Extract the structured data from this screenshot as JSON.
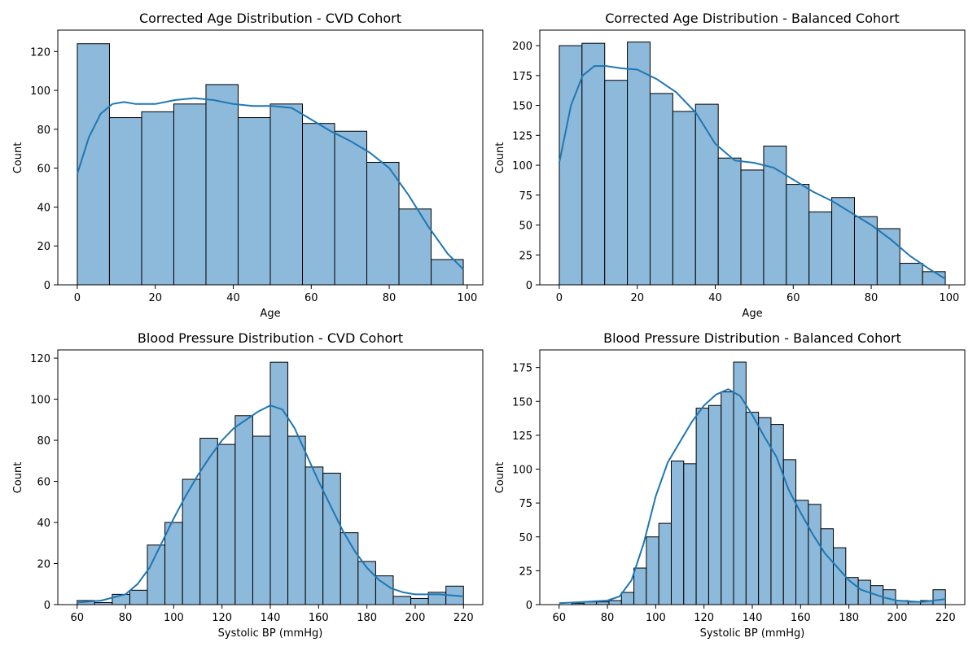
{
  "chart_data": [
    {
      "type": "bar",
      "title": "Corrected Age Distribution - CVD Cohort",
      "xlabel": "Age",
      "ylabel": "Count",
      "xlim": [
        -5,
        104
      ],
      "ylim": [
        0,
        131
      ],
      "xticks": [
        0,
        20,
        40,
        60,
        80,
        100
      ],
      "yticks": [
        0,
        20,
        40,
        60,
        80,
        100,
        120
      ],
      "bin_edges": [
        0,
        8.25,
        16.5,
        24.75,
        33,
        41.25,
        49.5,
        57.75,
        66,
        74.25,
        82.5,
        90.75,
        99
      ],
      "values": [
        124,
        86,
        89,
        93,
        103,
        86,
        93,
        83,
        79,
        63,
        39,
        13
      ],
      "kde": {
        "x": [
          0,
          3,
          6,
          9,
          12,
          15,
          20,
          25,
          30,
          35,
          40,
          45,
          50,
          55,
          60,
          65,
          70,
          75,
          80,
          85,
          90,
          95,
          99
        ],
        "y": [
          57,
          76,
          88,
          93,
          94,
          93,
          93,
          95,
          96,
          95,
          93,
          92,
          92,
          91,
          85,
          79,
          74,
          68,
          60,
          46,
          30,
          16,
          8
        ]
      },
      "grid": false,
      "color": "#1f77b4"
    },
    {
      "type": "bar",
      "title": "Corrected Age Distribution - Balanced Cohort",
      "xlabel": "Age",
      "ylabel": "Count",
      "xlim": [
        -5,
        104
      ],
      "ylim": [
        0,
        213
      ],
      "xticks": [
        0,
        20,
        40,
        60,
        80,
        100
      ],
      "yticks": [
        0,
        25,
        50,
        75,
        100,
        125,
        150,
        175,
        200
      ],
      "bin_edges": [
        0,
        5.8235,
        11.647,
        17.4705,
        23.294,
        29.1175,
        34.941,
        40.7645,
        46.588,
        52.4115,
        58.235,
        64.0585,
        69.882,
        75.7055,
        81.529,
        87.3525,
        93.176,
        99
      ],
      "values": [
        200,
        202,
        171,
        203,
        160,
        145,
        151,
        106,
        96,
        116,
        84,
        61,
        73,
        57,
        47,
        18,
        11
      ],
      "kde": {
        "x": [
          0,
          3,
          6,
          9,
          12,
          16,
          20,
          25,
          30,
          35,
          40,
          45,
          50,
          55,
          60,
          65,
          70,
          75,
          80,
          85,
          90,
          95,
          99
        ],
        "y": [
          102,
          150,
          175,
          183,
          183,
          181,
          180,
          172,
          161,
          144,
          118,
          104,
          102,
          98,
          88,
          78,
          70,
          60,
          50,
          38,
          24,
          13,
          5
        ]
      },
      "grid": false,
      "color": "#1f77b4"
    },
    {
      "type": "bar",
      "title": "Blood Pressure Distribution - CVD Cohort",
      "xlabel": "Systolic BP (mmHg)",
      "ylabel": "Count",
      "xlim": [
        52,
        228
      ],
      "ylim": [
        0,
        124
      ],
      "xticks": [
        60,
        80,
        100,
        120,
        140,
        160,
        180,
        200,
        220
      ],
      "yticks": [
        0,
        20,
        40,
        60,
        80,
        100,
        120
      ],
      "bin_edges": [
        60,
        67.27,
        74.55,
        81.82,
        89.09,
        96.36,
        103.64,
        110.91,
        118.18,
        125.45,
        132.73,
        140,
        147.27,
        154.55,
        161.82,
        169.09,
        176.36,
        183.64,
        190.91,
        198.18,
        205.45,
        212.73,
        220
      ],
      "values": [
        2,
        1,
        5,
        7,
        29,
        40,
        61,
        81,
        78,
        92,
        82,
        118,
        82,
        67,
        64,
        35,
        21,
        14,
        4,
        3,
        6,
        9
      ],
      "kde": {
        "x": [
          60,
          70,
          80,
          85,
          90,
          95,
          100,
          105,
          110,
          115,
          120,
          125,
          130,
          135,
          140,
          145,
          150,
          155,
          160,
          165,
          170,
          175,
          180,
          185,
          190,
          195,
          200,
          210,
          220
        ],
        "y": [
          1,
          2,
          5,
          10,
          18,
          30,
          42,
          53,
          63,
          72,
          80,
          86,
          90,
          94,
          97,
          95,
          86,
          73,
          60,
          48,
          36,
          26,
          18,
          12,
          8,
          6,
          5,
          5,
          4
        ]
      },
      "grid": false,
      "color": "#1f77b4"
    },
    {
      "type": "bar",
      "title": "Blood Pressure Distribution - Balanced Cohort",
      "xlabel": "Systolic BP (mmHg)",
      "ylabel": "Count",
      "xlim": [
        52,
        228
      ],
      "ylim": [
        0,
        188
      ],
      "xticks": [
        60,
        80,
        100,
        120,
        140,
        160,
        180,
        200,
        220
      ],
      "yticks": [
        0,
        25,
        50,
        75,
        100,
        125,
        150,
        175
      ],
      "bin_edges": [
        60,
        65.16,
        70.32,
        75.48,
        80.65,
        85.81,
        90.97,
        96.13,
        101.29,
        106.45,
        111.61,
        116.77,
        121.94,
        127.1,
        132.26,
        137.42,
        142.58,
        147.74,
        152.9,
        158.06,
        163.23,
        168.39,
        173.55,
        178.71,
        183.87,
        189.03,
        194.19,
        199.35,
        204.52,
        209.68,
        214.84,
        220
      ],
      "values": [
        0,
        1,
        2,
        2,
        3,
        9,
        27,
        50,
        60,
        106,
        104,
        145,
        147,
        157,
        179,
        142,
        138,
        133,
        107,
        77,
        74,
        56,
        42,
        20,
        18,
        14,
        11,
        3,
        2,
        3,
        11
      ],
      "kde": {
        "x": [
          60,
          70,
          80,
          85,
          90,
          95,
          100,
          105,
          110,
          115,
          120,
          125,
          130,
          135,
          140,
          145,
          150,
          155,
          160,
          165,
          170,
          175,
          180,
          185,
          190,
          195,
          200,
          210,
          220
        ],
        "y": [
          1,
          2,
          3,
          6,
          18,
          45,
          80,
          105,
          120,
          135,
          147,
          155,
          159,
          154,
          140,
          124,
          109,
          85,
          68,
          52,
          38,
          28,
          18,
          11,
          8,
          5,
          3,
          2,
          4
        ]
      },
      "grid": false,
      "color": "#1f77b4"
    }
  ]
}
